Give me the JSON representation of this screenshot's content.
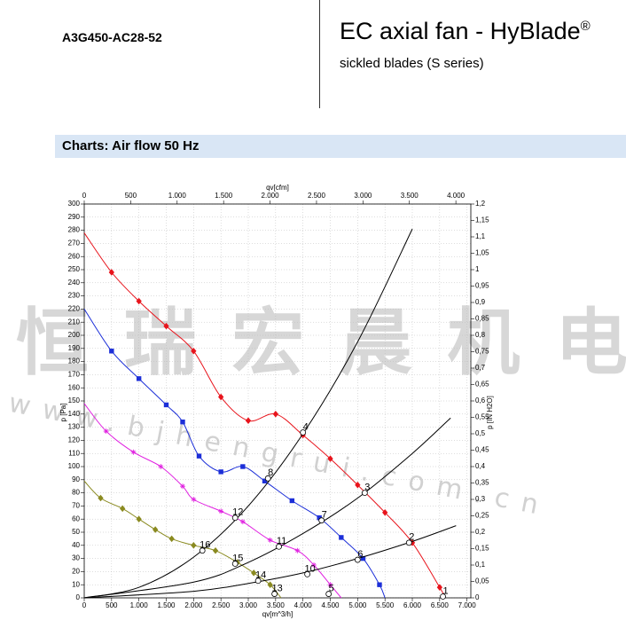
{
  "header": {
    "code": "A3G450-AC28-52",
    "title": "EC axial fan - HyBlade",
    "title_mark": "®",
    "subtitle": "sickled blades (S series)",
    "section": "Charts: Air flow 50 Hz"
  },
  "watermark": {
    "cn": "恒瑞宏晨机电",
    "url": "www.bjhengrui.com.cn"
  },
  "chart_data": {
    "type": "line",
    "xlabel": "qv[m^3/h]",
    "x2label": "qv[cfm]",
    "ylabel": "p [Pa]",
    "y2label": "p [IN H2O]",
    "xlim": [
      0,
      7070
    ],
    "x2lim": [
      0,
      4161
    ],
    "ylim": [
      0,
      300
    ],
    "y2lim": [
      0,
      1.2
    ],
    "grid": true,
    "xticks": [
      0,
      500,
      {
        "value": 1000,
        "label": "1.000"
      },
      {
        "value": 1500,
        "label": "1.500"
      },
      {
        "value": 2000,
        "label": "2.000"
      },
      {
        "value": 2500,
        "label": "2.500"
      },
      {
        "value": 3000,
        "label": "3.000"
      },
      {
        "value": 3500,
        "label": "3.500"
      },
      {
        "value": 4000,
        "label": "4.000"
      },
      {
        "value": 4500,
        "label": "4.500"
      },
      {
        "value": 5000,
        "label": "5.000"
      },
      {
        "value": 5500,
        "label": "5.500"
      },
      {
        "value": 6000,
        "label": "6.000"
      },
      {
        "value": 6500,
        "label": "6.500"
      },
      {
        "value": 7000,
        "label": "7.000"
      }
    ],
    "x2ticks": [
      0,
      500,
      {
        "value": 1000,
        "label": "1.000"
      },
      {
        "value": 1500,
        "label": "1.500"
      },
      {
        "value": 2000,
        "label": "2.000"
      },
      {
        "value": 2500,
        "label": "2.500"
      },
      {
        "value": 3000,
        "label": "3.000"
      },
      {
        "value": 3500,
        "label": "3.500"
      },
      {
        "value": 4000,
        "label": "4.000"
      }
    ],
    "yticks": [
      0,
      10,
      20,
      30,
      40,
      50,
      60,
      70,
      80,
      90,
      100,
      110,
      120,
      130,
      140,
      150,
      160,
      170,
      180,
      190,
      200,
      210,
      220,
      230,
      240,
      250,
      260,
      270,
      280,
      290,
      300
    ],
    "y2ticks": [
      0,
      {
        "value": 0.05,
        "label": "0,05"
      },
      {
        "value": 0.1,
        "label": "0,1"
      },
      {
        "value": 0.15,
        "label": "0,15"
      },
      {
        "value": 0.2,
        "label": "0,2"
      },
      {
        "value": 0.25,
        "label": "0,25"
      },
      {
        "value": 0.3,
        "label": "0,3"
      },
      {
        "value": 0.35,
        "label": "0,35"
      },
      {
        "value": 0.4,
        "label": "0,4"
      },
      {
        "value": 0.45,
        "label": "0,45"
      },
      {
        "value": 0.5,
        "label": "0,5"
      },
      {
        "value": 0.55,
        "label": "0,55"
      },
      {
        "value": 0.6,
        "label": "0,6"
      },
      {
        "value": 0.65,
        "label": "0,65"
      },
      {
        "value": 0.7,
        "label": "0,7"
      },
      {
        "value": 0.75,
        "label": "0,75"
      },
      {
        "value": 0.8,
        "label": "0,8"
      },
      {
        "value": 0.85,
        "label": "0,85"
      },
      {
        "value": 0.9,
        "label": "0,9"
      },
      {
        "value": 0.95,
        "label": "0,95"
      },
      1,
      {
        "value": 1.05,
        "label": "1,05"
      },
      {
        "value": 1.1,
        "label": "1,1"
      },
      {
        "value": 1.15,
        "label": "1,15"
      },
      {
        "value": 1.2,
        "label": "1,2"
      }
    ],
    "series": [
      {
        "color": "#e8141c",
        "marker": "diamond",
        "x": [
          0,
          500,
          1000,
          1500,
          2000,
          2500,
          3000,
          3500,
          4000,
          4500,
          5000,
          5500,
          6000,
          6500,
          6600
        ],
        "values": [
          278,
          248,
          226,
          207,
          188,
          153,
          135,
          140,
          124,
          106,
          86,
          65,
          42,
          8,
          0
        ]
      },
      {
        "color": "#1c2fd8",
        "marker": "square",
        "x": [
          0,
          500,
          1000,
          1500,
          1800,
          2100,
          2500,
          2900,
          3300,
          3800,
          4300,
          4700,
          5100,
          5400,
          5500
        ],
        "values": [
          220,
          188,
          167,
          147,
          134,
          108,
          96,
          100,
          89,
          74,
          61,
          46,
          30,
          10,
          0
        ]
      },
      {
        "color": "#e020e0",
        "marker": "star",
        "x": [
          0,
          400,
          900,
          1400,
          1800,
          2000,
          2500,
          2900,
          3400,
          3900,
          4200,
          4500,
          4700
        ],
        "values": [
          148,
          127,
          111,
          100,
          85,
          75,
          66,
          58,
          44,
          36,
          25,
          10,
          0
        ]
      },
      {
        "color": "#8a8a20",
        "marker": "diamond",
        "x": [
          0,
          300,
          700,
          1000,
          1300,
          1600,
          2000,
          2400,
          2800,
          3100,
          3400,
          3600
        ],
        "values": [
          89,
          76,
          68,
          60,
          52,
          45,
          40,
          36,
          27,
          19,
          10,
          0
        ]
      },
      {
        "color": "#000000",
        "marker": "none",
        "x": [
          0,
          1000,
          2000,
          3000,
          4000,
          5000,
          6000
        ],
        "values": [
          0,
          8,
          31,
          70,
          125,
          195,
          281
        ]
      },
      {
        "color": "#000000",
        "marker": "none",
        "x": [
          0,
          2000,
          3000,
          4000,
          5000,
          6000,
          6700
        ],
        "values": [
          0,
          12,
          27,
          49,
          76,
          110,
          137
        ]
      },
      {
        "color": "#000000",
        "marker": "none",
        "x": [
          0,
          2000,
          3000,
          4000,
          5000,
          6000,
          6800
        ],
        "values": [
          0,
          5,
          11,
          19,
          30,
          43,
          55
        ]
      }
    ],
    "points": [
      {
        "label": "1",
        "x": 6560,
        "y": 1
      },
      {
        "label": "2",
        "x": 5940,
        "y": 42
      },
      {
        "label": "3",
        "x": 5130,
        "y": 80
      },
      {
        "label": "4",
        "x": 4000,
        "y": 126
      },
      {
        "label": "5",
        "x": 4470,
        "y": 3
      },
      {
        "label": "6",
        "x": 5000,
        "y": 29
      },
      {
        "label": "7",
        "x": 4340,
        "y": 59
      },
      {
        "label": "8",
        "x": 3360,
        "y": 91
      },
      {
        "label": "10",
        "x": 4080,
        "y": 18
      },
      {
        "label": "11",
        "x": 3560,
        "y": 39
      },
      {
        "label": "12",
        "x": 2760,
        "y": 61
      },
      {
        "label": "13",
        "x": 3480,
        "y": 3
      },
      {
        "label": "14",
        "x": 3180,
        "y": 13
      },
      {
        "label": "15",
        "x": 2760,
        "y": 26
      },
      {
        "label": "16",
        "x": 2160,
        "y": 36
      }
    ]
  }
}
